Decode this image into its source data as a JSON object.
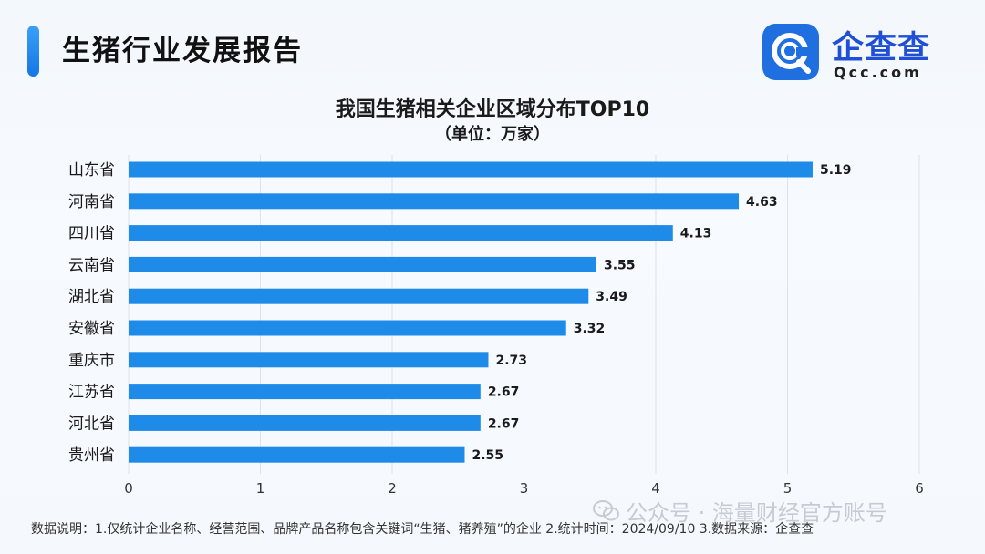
{
  "header": {
    "title": "生猪行业发展报告"
  },
  "logo": {
    "name": "企查查",
    "domain": "Qcc.com"
  },
  "chart_data": {
    "type": "bar",
    "orientation": "horizontal",
    "title": "我国生猪相关企业区域分布TOP10",
    "subtitle": "（单位：万家）",
    "categories": [
      "山东省",
      "河南省",
      "四川省",
      "云南省",
      "湖北省",
      "安徽省",
      "重庆市",
      "江苏省",
      "河北省",
      "贵州省"
    ],
    "values": [
      5.19,
      4.63,
      4.13,
      3.55,
      3.49,
      3.32,
      2.73,
      2.67,
      2.67,
      2.55
    ],
    "value_labels": [
      "5.19",
      "4.63",
      "4.13",
      "3.55",
      "3.49",
      "3.32",
      "2.73",
      "2.67",
      "2.67",
      "2.55"
    ],
    "xlim": [
      0,
      6
    ],
    "xticks": [
      0,
      1,
      2,
      3,
      4,
      5,
      6
    ],
    "grid": true,
    "bar_color": "#1e8be8",
    "grid_color": "#dde3ea"
  },
  "footnote": "数据说明：1.仅统计企业名称、经营范围、品牌产品名称包含关键词“生猪、猪养殖”的企业  2.统计时间：2024/09/10  3.数据来源：企查查",
  "watermark": {
    "text": "公众号 · 海量财经官方账号",
    "icon": "wechat-icon"
  }
}
